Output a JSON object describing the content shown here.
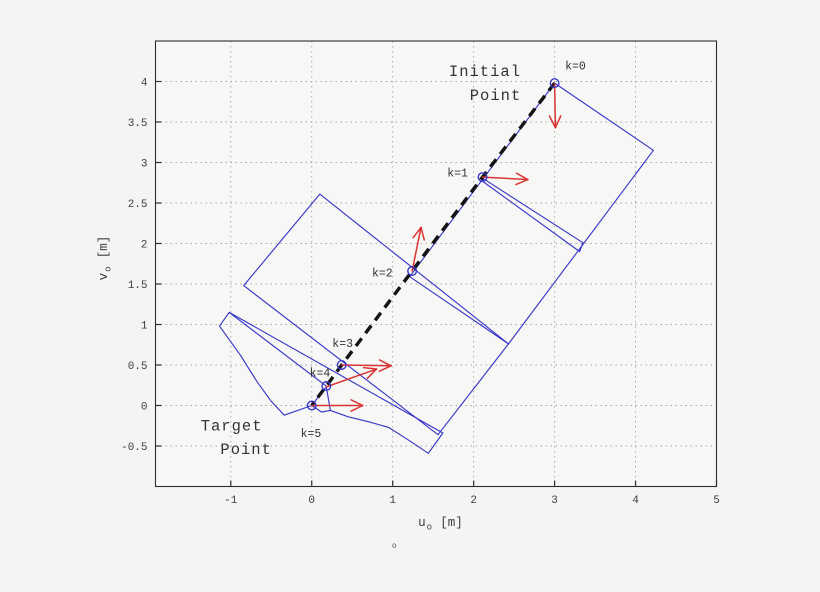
{
  "figure": {
    "background": "#f4f4f2",
    "plot_background": "#f7f7f5",
    "stray_glyph": {
      "text": "o",
      "u": 1.02,
      "v": -1.76
    }
  },
  "chart_data": {
    "type": "scatter",
    "title": "",
    "xlabel": {
      "main": "u",
      "sub": "o",
      "unit": "[m]",
      "u": 1.59,
      "v": -1.49
    },
    "ylabel": {
      "main": "v",
      "sub": "o",
      "unit": "[m]",
      "u": -2.53,
      "v": 1.82
    },
    "xlim": [
      -1.93,
      5.0
    ],
    "ylim": [
      -1.0,
      4.5
    ],
    "grid": true,
    "grid_style": "dotted",
    "legend": "none",
    "xticks": {
      "values": [
        -1,
        0,
        1,
        2,
        3,
        4,
        5
      ],
      "labels": [
        "-1",
        "0",
        "1",
        "2",
        "3",
        "4",
        "5"
      ]
    },
    "yticks": {
      "values": [
        4,
        3.5,
        3,
        2.5,
        2,
        1.5,
        1,
        0.5,
        0,
        -0.5
      ],
      "labels": [
        "4",
        "3.5",
        "3",
        "2.5",
        "2",
        "1.5",
        "1",
        "0.5",
        "0",
        "-0.5"
      ]
    },
    "trajectory": {
      "style": "dashed",
      "color": "#141414",
      "marker": "circle",
      "marker_color": "#3838c8",
      "points": [
        {
          "k": "k=0",
          "u": 3.0,
          "v": 3.98,
          "label_u": 3.13,
          "label_v": 4.15,
          "anchor": "start"
        },
        {
          "k": "k=1",
          "u": 2.11,
          "v": 2.82,
          "label_u": 1.93,
          "label_v": 2.83,
          "anchor": "end"
        },
        {
          "k": "k=2",
          "u": 1.24,
          "v": 1.66,
          "label_u": 1.0,
          "label_v": 1.59,
          "anchor": "end"
        },
        {
          "k": "k=3",
          "u": 0.37,
          "v": 0.5,
          "label_u": 0.51,
          "label_v": 0.72,
          "anchor": "end"
        },
        {
          "k": "k=4",
          "u": 0.18,
          "v": 0.24,
          "label_u": 0.23,
          "label_v": 0.36,
          "anchor": "end"
        },
        {
          "k": "k=5",
          "u": 0.0,
          "v": 0.0,
          "label_u": -0.01,
          "label_v": -0.39,
          "anchor": "middle"
        }
      ]
    },
    "arrows": {
      "color": "#d93434",
      "items": [
        {
          "name": "heading-arrow-k0",
          "from": [
            3.0,
            3.97
          ],
          "to": [
            3.01,
            3.43
          ]
        },
        {
          "name": "heading-arrow-k1",
          "from": [
            2.11,
            2.82
          ],
          "to": [
            2.67,
            2.79
          ]
        },
        {
          "name": "heading-arrow-k2",
          "from": [
            1.24,
            1.66
          ],
          "to": [
            1.35,
            2.2
          ]
        },
        {
          "name": "heading-arrow-k3",
          "from": [
            0.37,
            0.5
          ],
          "to": [
            0.98,
            0.49
          ]
        },
        {
          "name": "heading-arrow-k4",
          "from": [
            0.18,
            0.23
          ],
          "to": [
            0.8,
            0.45
          ]
        },
        {
          "name": "heading-arrow-k5",
          "from": [
            0.0,
            0.0
          ],
          "to": [
            0.63,
            0.0
          ]
        }
      ]
    },
    "annotations": [
      {
        "name": "initial-point-label",
        "lines": [
          {
            "text": "Initial",
            "u": 2.14,
            "v": 4.07
          },
          {
            "text": "Point",
            "u": 2.27,
            "v": 3.77
          }
        ]
      },
      {
        "name": "target-point-label",
        "lines": [
          {
            "text": "Target",
            "u": -0.99,
            "v": -0.31
          },
          {
            "text": "Point",
            "u": -0.81,
            "v": -0.6
          }
        ]
      }
    ],
    "outlines": {
      "color": "#3838c8",
      "items": [
        {
          "name": "vehicle-outline-k0",
          "closed": true,
          "pts": [
            [
              3.0,
              3.98
            ],
            [
              4.22,
              3.15
            ],
            [
              2.43,
              0.76
            ],
            [
              1.21,
              1.59
            ]
          ]
        },
        {
          "name": "vehicle-outline-k2",
          "closed": true,
          "pts": [
            [
              0.1,
              2.61
            ],
            [
              2.43,
              0.76
            ],
            [
              1.56,
              -0.36
            ],
            [
              -0.84,
              1.48
            ]
          ]
        },
        {
          "name": "vehicle-outline-k1-sliver",
          "closed": true,
          "pts": [
            [
              2.12,
              2.8
            ],
            [
              3.35,
              2.01
            ],
            [
              3.31,
              1.9
            ],
            [
              2.12,
              2.76
            ]
          ]
        },
        {
          "name": "vehicle-swept-region",
          "closed": true,
          "pts": [
            [
              -1.02,
              1.15
            ],
            [
              1.62,
              -0.34
            ],
            [
              1.44,
              -0.59
            ],
            [
              1.2,
              -0.43
            ],
            [
              0.95,
              -0.27
            ],
            [
              0.7,
              -0.2
            ],
            [
              0.45,
              -0.14
            ],
            [
              0.23,
              -0.06
            ],
            [
              0.12,
              -0.08
            ],
            [
              0.0,
              0.0
            ],
            [
              -0.34,
              -0.12
            ],
            [
              -0.5,
              0.05
            ],
            [
              -0.68,
              0.3
            ],
            [
              -0.88,
              0.62
            ],
            [
              -1.14,
              0.98
            ]
          ]
        },
        {
          "name": "vehicle-edge-fold",
          "closed": false,
          "pts": [
            [
              -1.02,
              1.15
            ],
            [
              0.18,
              0.24
            ]
          ]
        },
        {
          "name": "vehicle-edge-inner",
          "closed": false,
          "pts": [
            [
              0.0,
              0.0
            ],
            [
              0.18,
              0.23
            ],
            [
              0.23,
              -0.06
            ]
          ]
        }
      ]
    },
    "colors": {
      "grid": "#a6a6a6",
      "axis": "#2f2f2f",
      "tick_text": "#3d3d3d",
      "label_text": "#333333"
    }
  }
}
